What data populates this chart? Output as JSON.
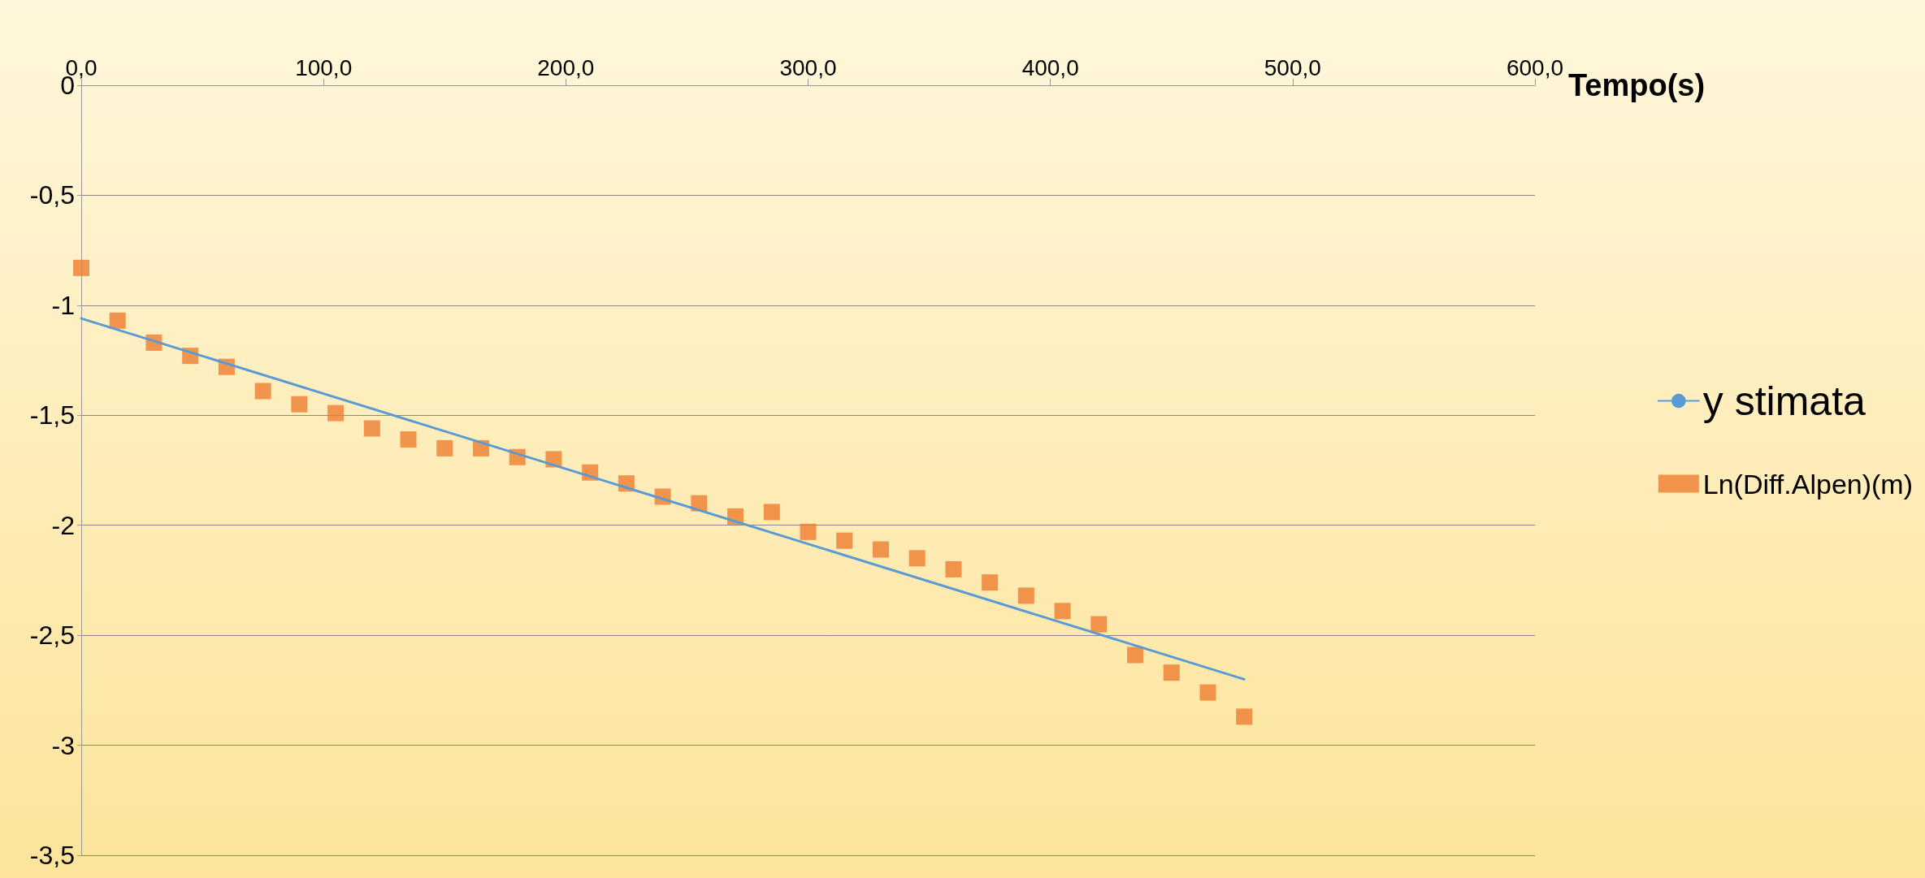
{
  "chart_data": {
    "type": "scatter",
    "xlabel": "Tempo(s)",
    "xlim": [
      0,
      600
    ],
    "xticks": [
      {
        "value": 0,
        "label": "0,0"
      },
      {
        "value": 100,
        "label": "100,0"
      },
      {
        "value": 200,
        "label": "200,0"
      },
      {
        "value": 300,
        "label": "300,0"
      },
      {
        "value": 400,
        "label": "400,0"
      },
      {
        "value": 500,
        "label": "500,0"
      },
      {
        "value": 600,
        "label": "600,0"
      }
    ],
    "ylim": [
      -3.5,
      0
    ],
    "yticks": [
      0,
      {
        "value": -0.5,
        "label": "-0,5"
      },
      -1,
      {
        "value": -1.5,
        "label": "-1,5"
      },
      -2,
      {
        "value": -2.5,
        "label": "-2,5"
      },
      -3,
      {
        "value": -3.5,
        "label": "-3,5"
      }
    ],
    "grid": "y",
    "legend": "right",
    "series": [
      {
        "name": "y stimata",
        "type": "line",
        "color": "#5b9bd5",
        "marker": "none",
        "line_style": "solid",
        "x": [
          0,
          480
        ],
        "values": [
          -1.06,
          -2.7
        ]
      },
      {
        "name": "Ln(Diff.Alpen)(m)",
        "color": "#ed7d31",
        "marker": "square",
        "x": [
          0,
          15,
          30,
          45,
          60,
          75,
          90,
          105,
          120,
          135,
          150,
          165,
          180,
          195,
          210,
          225,
          240,
          255,
          270,
          285,
          300,
          315,
          330,
          345,
          360,
          375,
          390,
          405,
          420,
          435,
          450,
          465,
          480
        ],
        "values": [
          -0.83,
          -1.07,
          -1.17,
          -1.23,
          -1.28,
          -1.39,
          -1.45,
          -1.49,
          -1.56,
          -1.61,
          -1.65,
          -1.65,
          -1.69,
          -1.7,
          -1.76,
          -1.81,
          -1.87,
          -1.9,
          -1.96,
          -1.94,
          -2.03,
          -2.07,
          -2.11,
          -2.15,
          -2.2,
          -2.26,
          -2.32,
          -2.39,
          -2.45,
          -2.59,
          -2.67,
          -2.76,
          -2.87
        ]
      }
    ]
  }
}
